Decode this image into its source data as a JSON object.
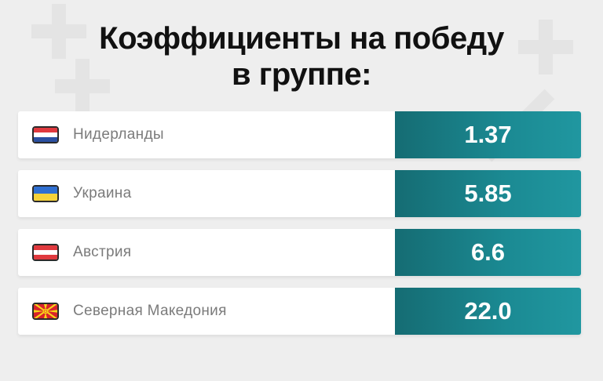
{
  "title": {
    "line1": "Коэффициенты на победу",
    "line2": "в группе:"
  },
  "rows": [
    {
      "team": "Нидерланды",
      "odds": "1.37",
      "flag_icon": "netherlands-flag-icon"
    },
    {
      "team": "Украина",
      "odds": "5.85",
      "flag_icon": "ukraine-flag-icon"
    },
    {
      "team": "Австрия",
      "odds": "6.6",
      "flag_icon": "austria-flag-icon"
    },
    {
      "team": "Северная Македония",
      "odds": "22.0",
      "flag_icon": "north-macedonia-flag-icon"
    }
  ],
  "colors": {
    "odds_bg": "#1b8a93",
    "title": "#111111",
    "team_text": "#7b7b7b"
  }
}
